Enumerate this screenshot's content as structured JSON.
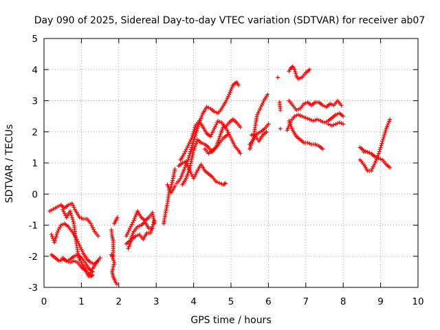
{
  "chart_data": {
    "type": "scatter",
    "title": "Day 090 of 2025, Sidereal Day-to-day VTEC variation (SDTVAR) for receiver ab07",
    "xlabel": "GPS time / hours",
    "ylabel": "SDTVAR / TECUs",
    "xlim": [
      0,
      10
    ],
    "ylim": [
      -3,
      5
    ],
    "xticks": [
      "0",
      "1",
      "2",
      "3",
      "4",
      "5",
      "6",
      "7",
      "8",
      "9",
      "10"
    ],
    "yticks": [
      "-3",
      "-2",
      "-1",
      "0",
      "1",
      "2",
      "3",
      "4",
      "5"
    ],
    "grid": true,
    "marker": "+",
    "color": "#ff0000",
    "traces": [
      [
        [
          0.15,
          -0.55
        ],
        [
          0.3,
          -0.45
        ],
        [
          0.45,
          -0.35
        ],
        [
          0.55,
          -0.45
        ],
        [
          0.65,
          -0.35
        ],
        [
          0.75,
          -0.3
        ],
        [
          0.85,
          -0.55
        ],
        [
          0.95,
          -0.75
        ],
        [
          1.05,
          -0.8
        ],
        [
          1.15,
          -0.8
        ],
        [
          1.25,
          -0.95
        ],
        [
          1.35,
          -1.2
        ],
        [
          1.45,
          -1.35
        ]
      ],
      [
        [
          0.2,
          -1.3
        ],
        [
          0.28,
          -1.55
        ],
        [
          0.35,
          -1.25
        ],
        [
          0.45,
          -1.0
        ],
        [
          0.55,
          -0.95
        ],
        [
          0.65,
          -1.05
        ],
        [
          0.75,
          -1.2
        ],
        [
          0.85,
          -1.4
        ],
        [
          0.95,
          -1.65
        ],
        [
          1.05,
          -1.9
        ],
        [
          1.15,
          -2.1
        ],
        [
          1.25,
          -2.2
        ],
        [
          1.35,
          -2.25
        ],
        [
          1.45,
          -2.15
        ]
      ],
      [
        [
          0.2,
          -1.95
        ],
        [
          0.3,
          -2.05
        ],
        [
          0.4,
          -2.15
        ],
        [
          0.5,
          -2.1
        ],
        [
          0.6,
          -2.15
        ],
        [
          0.7,
          -2.2
        ],
        [
          0.8,
          -2.15
        ],
        [
          0.9,
          -2.2
        ],
        [
          1.0,
          -2.35
        ],
        [
          1.1,
          -2.45
        ],
        [
          1.2,
          -2.65
        ],
        [
          1.3,
          -2.4
        ],
        [
          1.4,
          -2.2
        ],
        [
          1.5,
          -2.05
        ]
      ],
      [
        [
          0.5,
          -0.5
        ],
        [
          0.6,
          -0.75
        ],
        [
          0.7,
          -0.55
        ],
        [
          0.8,
          -0.95
        ],
        [
          0.85,
          -1.45
        ],
        [
          0.9,
          -1.85
        ],
        [
          0.95,
          -2.1
        ],
        [
          1.05,
          -2.3
        ],
        [
          1.15,
          -2.5
        ],
        [
          1.25,
          -2.65
        ],
        [
          1.3,
          -2.6
        ]
      ],
      [
        [
          0.5,
          -2.05
        ],
        [
          0.6,
          -2.15
        ],
        [
          0.7,
          -2.1
        ],
        [
          0.8,
          -2.0
        ],
        [
          0.9,
          -1.95
        ],
        [
          1.0,
          -2.05
        ],
        [
          1.1,
          -2.2
        ],
        [
          1.2,
          -2.4
        ],
        [
          1.3,
          -2.5
        ]
      ],
      [
        [
          1.8,
          -1.15
        ],
        [
          1.82,
          -1.35
        ],
        [
          1.85,
          -1.5
        ],
        [
          1.85,
          -2.0
        ],
        [
          1.8,
          -1.95
        ],
        [
          1.88,
          -2.2
        ],
        [
          1.82,
          -2.5
        ],
        [
          1.85,
          -2.65
        ],
        [
          1.9,
          -2.8
        ],
        [
          1.95,
          -2.9
        ]
      ],
      [
        [
          1.88,
          -0.95
        ],
        [
          1.92,
          -0.85
        ],
        [
          1.96,
          -0.75
        ]
      ],
      [
        [
          2.2,
          -1.35
        ],
        [
          2.3,
          -1.1
        ],
        [
          2.4,
          -0.85
        ],
        [
          2.5,
          -0.55
        ],
        [
          2.6,
          -0.75
        ],
        [
          2.7,
          -0.85
        ],
        [
          2.8,
          -0.75
        ],
        [
          2.9,
          -0.6
        ],
        [
          2.95,
          -0.95
        ]
      ],
      [
        [
          2.2,
          -1.6
        ],
        [
          2.3,
          -1.5
        ],
        [
          2.4,
          -1.2
        ],
        [
          2.5,
          -1.05
        ],
        [
          2.6,
          -1.0
        ],
        [
          2.7,
          -0.9
        ],
        [
          2.8,
          -1.1
        ],
        [
          2.9,
          -1.1
        ]
      ],
      [
        [
          2.25,
          -1.75
        ],
        [
          2.35,
          -1.45
        ],
        [
          2.45,
          -1.35
        ],
        [
          2.55,
          -1.3
        ],
        [
          2.65,
          -1.45
        ],
        [
          2.75,
          -1.25
        ],
        [
          2.85,
          -1.25
        ],
        [
          2.95,
          -0.85
        ]
      ],
      [
        [
          3.2,
          -0.95
        ],
        [
          3.25,
          -0.6
        ],
        [
          3.3,
          -0.3
        ],
        [
          3.35,
          0.1
        ],
        [
          3.4,
          0.25
        ],
        [
          3.45,
          0.5
        ],
        [
          3.5,
          0.8
        ]
      ],
      [
        [
          3.3,
          0.3
        ],
        [
          3.35,
          0.15
        ],
        [
          3.4,
          0.05
        ],
        [
          3.45,
          0.15
        ],
        [
          3.5,
          0.25
        ]
      ],
      [
        [
          3.55,
          0.35
        ],
        [
          3.65,
          0.5
        ],
        [
          3.75,
          0.8
        ],
        [
          3.85,
          1.1
        ],
        [
          3.95,
          1.5
        ],
        [
          4.05,
          1.9
        ],
        [
          4.15,
          2.3
        ],
        [
          4.25,
          2.6
        ],
        [
          4.35,
          2.8
        ],
        [
          4.45,
          2.75
        ],
        [
          4.55,
          2.65
        ],
        [
          4.65,
          2.6
        ],
        [
          4.75,
          2.75
        ],
        [
          4.85,
          2.95
        ],
        [
          4.95,
          3.2
        ],
        [
          5.05,
          3.5
        ],
        [
          5.15,
          3.6
        ],
        [
          5.2,
          3.5
        ]
      ],
      [
        [
          3.65,
          1.1
        ],
        [
          3.75,
          1.3
        ],
        [
          3.85,
          1.55
        ],
        [
          3.95,
          1.8
        ],
        [
          4.05,
          2.2
        ],
        [
          4.15,
          2.35
        ],
        [
          4.25,
          2.15
        ],
        [
          4.35,
          1.95
        ],
        [
          4.45,
          1.85
        ],
        [
          4.55,
          2.1
        ],
        [
          4.65,
          2.35
        ],
        [
          4.75,
          2.3
        ],
        [
          4.85,
          2.15
        ],
        [
          4.95,
          2.3
        ],
        [
          5.05,
          2.4
        ],
        [
          5.15,
          2.3
        ],
        [
          5.25,
          2.15
        ]
      ],
      [
        [
          3.7,
          0.3
        ],
        [
          3.8,
          0.5
        ],
        [
          3.9,
          0.85
        ],
        [
          4.0,
          1.4
        ],
        [
          4.1,
          1.75
        ],
        [
          4.2,
          1.65
        ],
        [
          4.3,
          1.6
        ],
        [
          4.4,
          1.5
        ],
        [
          4.5,
          1.35
        ],
        [
          4.6,
          1.5
        ],
        [
          4.7,
          1.85
        ],
        [
          4.8,
          2.2
        ],
        [
          4.9,
          2.05
        ],
        [
          5.0,
          1.8
        ],
        [
          5.1,
          1.55
        ],
        [
          5.2,
          1.4
        ],
        [
          5.25,
          1.3
        ]
      ],
      [
        [
          3.6,
          0.9
        ],
        [
          3.7,
          1.0
        ],
        [
          3.8,
          1.05
        ],
        [
          3.9,
          0.75
        ],
        [
          4.0,
          0.5
        ],
        [
          4.1,
          0.75
        ],
        [
          4.2,
          0.95
        ],
        [
          4.3,
          0.75
        ],
        [
          4.4,
          0.65
        ],
        [
          4.5,
          0.55
        ],
        [
          4.6,
          0.4
        ],
        [
          4.7,
          0.35
        ],
        [
          4.8,
          0.3
        ],
        [
          4.85,
          0.35
        ]
      ],
      [
        [
          4.3,
          1.45
        ],
        [
          4.4,
          1.3
        ],
        [
          4.5,
          1.4
        ],
        [
          4.6,
          1.5
        ],
        [
          4.7,
          1.65
        ],
        [
          4.8,
          1.8
        ],
        [
          4.9,
          1.9
        ]
      ],
      [
        [
          5.5,
          1.45
        ],
        [
          5.6,
          1.8
        ],
        [
          5.65,
          2.2
        ],
        [
          5.7,
          2.55
        ],
        [
          5.8,
          2.8
        ],
        [
          5.9,
          3.05
        ],
        [
          5.98,
          3.2
        ]
      ],
      [
        [
          5.5,
          1.6
        ],
        [
          5.6,
          1.75
        ],
        [
          5.7,
          1.95
        ],
        [
          5.8,
          2.0
        ],
        [
          5.9,
          2.1
        ],
        [
          6.0,
          2.25
        ]
      ],
      [
        [
          5.55,
          1.9
        ],
        [
          5.65,
          1.85
        ],
        [
          5.75,
          1.7
        ],
        [
          5.85,
          1.9
        ],
        [
          5.95,
          2.0
        ]
      ],
      [
        [
          6.25,
          3.75
        ]
      ],
      [
        [
          6.3,
          2.95
        ],
        [
          6.32,
          2.7
        ]
      ],
      [
        [
          6.32,
          2.1
        ]
      ],
      [
        [
          6.55,
          3.95
        ],
        [
          6.6,
          4.05
        ],
        [
          6.65,
          4.1
        ],
        [
          6.7,
          4.0
        ],
        [
          6.75,
          3.8
        ],
        [
          6.8,
          3.7
        ],
        [
          6.9,
          3.75
        ],
        [
          7.0,
          3.9
        ],
        [
          7.1,
          4.0
        ]
      ],
      [
        [
          6.55,
          3.0
        ],
        [
          6.65,
          2.85
        ],
        [
          6.75,
          2.7
        ],
        [
          6.85,
          2.75
        ],
        [
          6.95,
          2.9
        ],
        [
          7.05,
          2.95
        ],
        [
          7.15,
          2.85
        ],
        [
          7.25,
          2.95
        ],
        [
          7.35,
          2.95
        ],
        [
          7.45,
          2.85
        ],
        [
          7.55,
          2.8
        ],
        [
          7.65,
          2.9
        ],
        [
          7.75,
          2.85
        ],
        [
          7.85,
          3.0
        ],
        [
          7.95,
          2.85
        ]
      ],
      [
        [
          6.5,
          2.05
        ],
        [
          6.6,
          2.35
        ],
        [
          6.7,
          2.5
        ],
        [
          6.8,
          2.55
        ],
        [
          6.9,
          2.5
        ],
        [
          7.0,
          2.45
        ],
        [
          7.1,
          2.4
        ],
        [
          7.2,
          2.35
        ],
        [
          7.3,
          2.4
        ],
        [
          7.4,
          2.35
        ],
        [
          7.5,
          2.3
        ],
        [
          7.6,
          2.35
        ],
        [
          7.7,
          2.45
        ],
        [
          7.8,
          2.55
        ],
        [
          7.9,
          2.6
        ],
        [
          8.0,
          2.5
        ]
      ],
      [
        [
          6.55,
          2.35
        ],
        [
          6.65,
          2.05
        ],
        [
          6.75,
          1.85
        ],
        [
          6.85,
          1.75
        ],
        [
          6.95,
          1.65
        ],
        [
          7.05,
          1.65
        ],
        [
          7.15,
          1.6
        ],
        [
          7.25,
          1.6
        ],
        [
          7.35,
          1.55
        ],
        [
          7.45,
          1.45
        ]
      ],
      [
        [
          7.6,
          2.25
        ],
        [
          7.7,
          2.2
        ],
        [
          7.8,
          2.25
        ],
        [
          7.9,
          2.3
        ],
        [
          8.0,
          2.25
        ]
      ],
      [
        [
          8.45,
          1.5
        ],
        [
          8.55,
          1.4
        ],
        [
          8.65,
          1.35
        ],
        [
          8.75,
          1.3
        ],
        [
          8.85,
          1.2
        ],
        [
          8.95,
          1.15
        ],
        [
          9.05,
          1.1
        ],
        [
          9.15,
          0.95
        ],
        [
          9.25,
          0.85
        ]
      ],
      [
        [
          8.45,
          1.1
        ],
        [
          8.55,
          0.95
        ],
        [
          8.65,
          0.75
        ],
        [
          8.75,
          0.75
        ],
        [
          8.85,
          1.0
        ],
        [
          8.95,
          1.3
        ],
        [
          9.05,
          1.7
        ],
        [
          9.15,
          2.1
        ],
        [
          9.25,
          2.4
        ]
      ],
      [
        [
          8.55,
          1.35
        ],
        [
          8.65,
          1.35
        ],
        [
          8.75,
          1.3
        ],
        [
          8.85,
          1.2
        ]
      ]
    ]
  }
}
